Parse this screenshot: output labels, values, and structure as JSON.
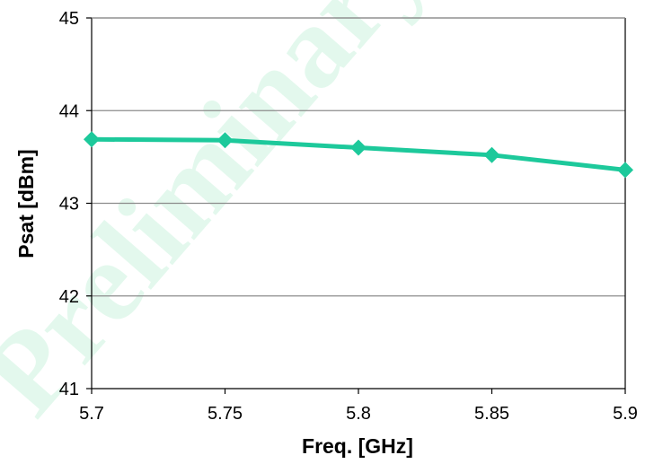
{
  "watermark": {
    "text": "Preliminary",
    "color": "#2fd07a"
  },
  "chart_data": {
    "type": "line",
    "title": "",
    "xlabel": "Freq. [GHz]",
    "ylabel": "Psat [dBm]",
    "x": [
      5.7,
      5.75,
      5.8,
      5.85,
      5.9
    ],
    "x_tick_labels": [
      "5.7",
      "5.75",
      "5.8",
      "5.85",
      "5.9"
    ],
    "xlim": [
      5.7,
      5.9
    ],
    "y_ticks": [
      41,
      42,
      43,
      44,
      45
    ],
    "y_tick_labels": [
      "41",
      "42",
      "43",
      "44",
      "45"
    ],
    "ylim": [
      41,
      45
    ],
    "grid": "horizontal",
    "legend": "none",
    "series": [
      {
        "values": [
          43.69,
          43.68,
          43.6,
          43.52,
          43.36
        ],
        "color": "#1dc99b",
        "marker": "diamond"
      }
    ]
  }
}
